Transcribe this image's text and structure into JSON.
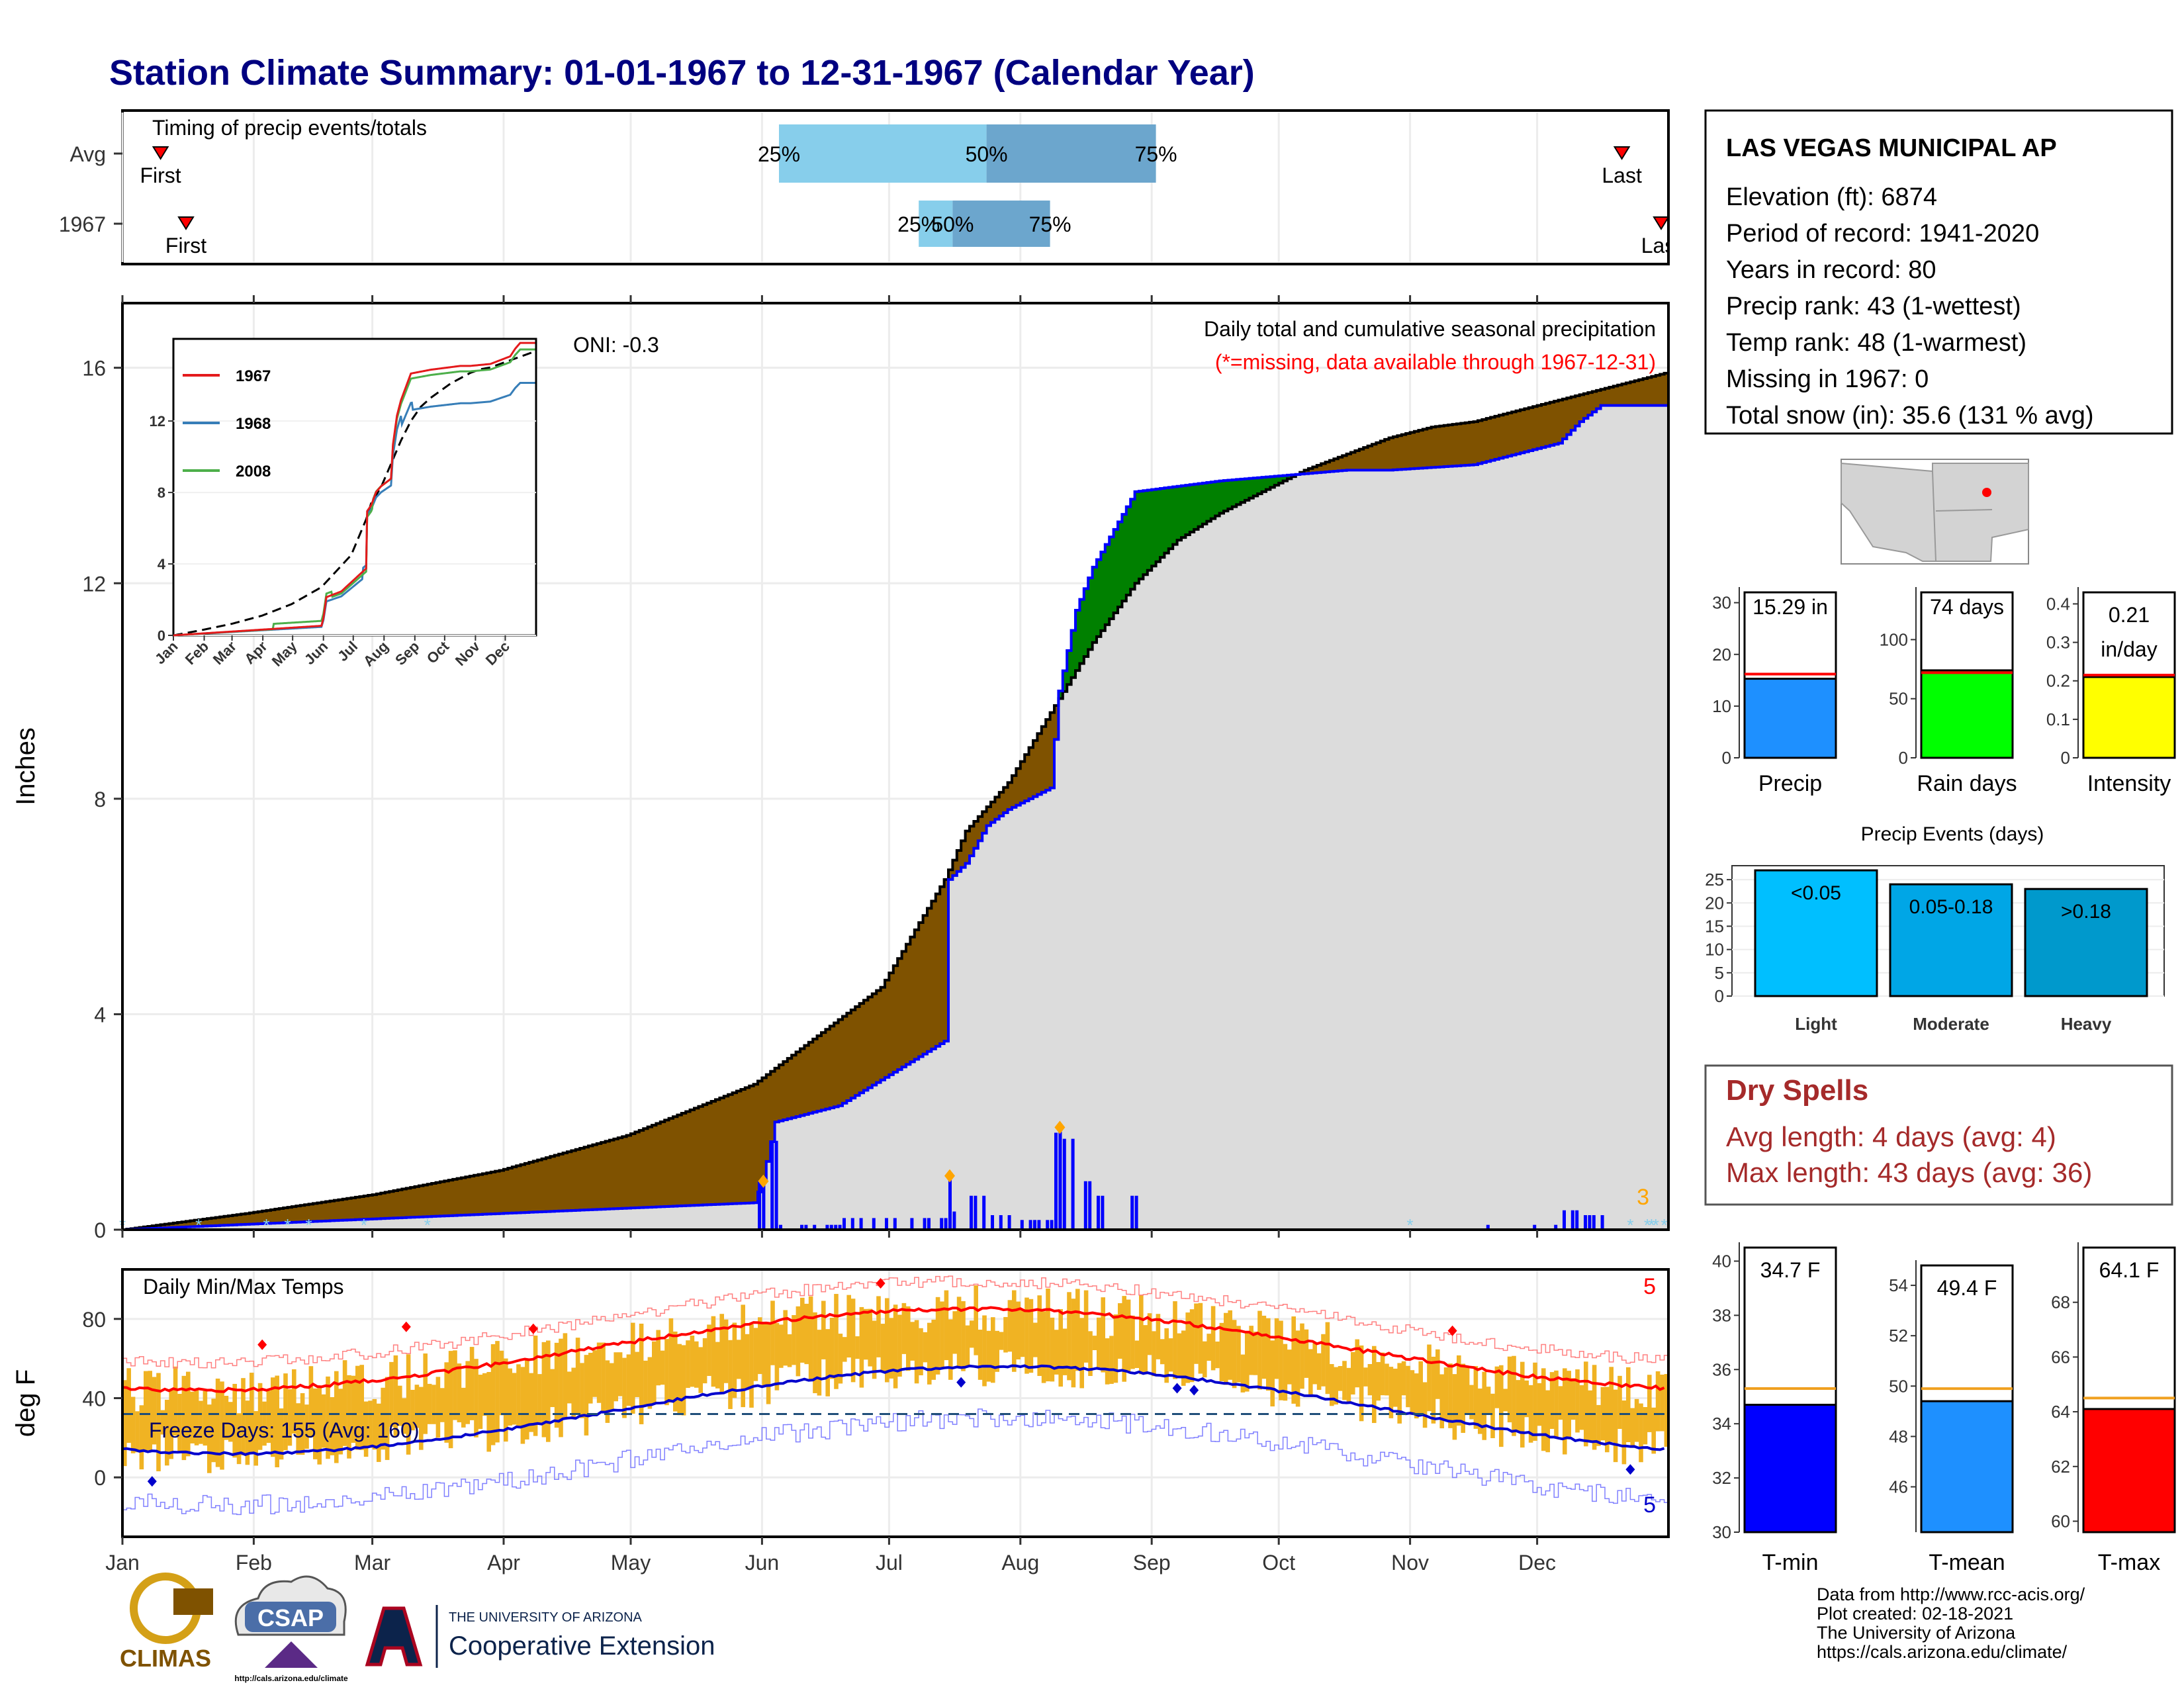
{
  "title": "Station Climate Summary: 01-01-1967 to 12-31-1967 (Calendar Year)",
  "colors": {
    "title": "#000080",
    "brown": "#7f5200",
    "green": "#008000",
    "blue": "#0000ff",
    "gray": "#dcdcdc",
    "light_blue": "#87ceeb",
    "mid_blue": "#6ca6cd",
    "orange": "#f0b323",
    "red": "#ff0000",
    "navy": "#000099",
    "dry_red": "#a52a2a"
  },
  "months": [
    "Jan",
    "Feb",
    "Mar",
    "Apr",
    "May",
    "Jun",
    "Jul",
    "Aug",
    "Sep",
    "Oct",
    "Nov",
    "Dec"
  ],
  "timing": {
    "label": "Timing of precip events/totals",
    "rows": [
      {
        "name": "Avg",
        "first_label": "First",
        "last_label": "Last",
        "first_doy": 10,
        "last_doy": 355,
        "p25_doy": 156,
        "p50_doy": 205,
        "p75_doy": 245,
        "labels": [
          "25%",
          "50%",
          "75%"
        ]
      },
      {
        "name": "1967",
        "first_label": "First",
        "last_label": "Last",
        "first_doy": 16,
        "last_doy": 365,
        "p25_doy": 189,
        "p50_doy": 197,
        "p75_doy": 220,
        "labels": [
          "25%",
          "50%",
          "75%"
        ]
      }
    ]
  },
  "main": {
    "ylabel": "Inches",
    "yticks": [
      0,
      4,
      8,
      12,
      16
    ],
    "ylim": [
      0,
      17.2
    ],
    "oni": "ONI: -0.3",
    "note1": "Daily total and cumulative seasonal precipitation",
    "note2": "(*=missing, data available through 1967-12-31)",
    "corner_count": "3"
  },
  "inset": {
    "yticks": [
      0,
      4,
      8,
      12
    ],
    "xticks": [
      "Jan",
      "Feb",
      "Mar",
      "Apr",
      "May",
      "Jun",
      "Jul",
      "Aug",
      "Sep",
      "Oct",
      "Nov",
      "Dec"
    ],
    "legend": [
      "1967",
      "1968",
      "2008"
    ],
    "legend_colors": [
      "#e41a1c",
      "#377eb8",
      "#4daf4a"
    ]
  },
  "temps": {
    "label": "Daily Min/Max Temps",
    "ylabel": "deg F",
    "yticks": [
      0,
      40,
      80
    ],
    "freeze_label": "Freeze Days: 155 (Avg: 160)",
    "freeze_line": 32,
    "count_top": "5",
    "count_bottom": "5"
  },
  "station": {
    "name": "LAS VEGAS MUNICIPAL AP",
    "lines": [
      "Elevation (ft): 6874",
      "Period of record: 1941-2020",
      "Years in record: 80",
      "Precip rank: 43 (1-wettest)",
      "Temp rank: 48 (1-warmest)",
      "Missing in 1967: 0",
      "Total snow (in): 35.6 (131 % avg)"
    ]
  },
  "summary_bars": [
    {
      "label": "Precip",
      "value_text": "15.29 in",
      "value": 15.29,
      "avg": 16.2,
      "ymax": 32,
      "yticks": [
        0,
        10,
        20,
        30
      ],
      "color": "#1e90ff"
    },
    {
      "label": "Rain days",
      "value_text": "74 days",
      "value": 74,
      "avg": 72,
      "ymax": 140,
      "yticks": [
        0,
        50,
        100
      ],
      "color": "#00ff00"
    },
    {
      "label": "Intensity",
      "value_text": "0.21",
      "value_text2": "in/day",
      "value": 0.21,
      "avg": 0.215,
      "ymax": 0.43,
      "yticks": [
        0.0,
        0.1,
        0.2,
        0.3,
        0.4
      ],
      "color": "#ffff00"
    }
  ],
  "events": {
    "title": "Precip Events (days)",
    "yticks": [
      0,
      5,
      10,
      15,
      20,
      25
    ],
    "bars": [
      {
        "label": "Light",
        "range": "<0.05",
        "value": 27,
        "color": "#00bfff"
      },
      {
        "label": "Moderate",
        "range": "0.05-0.18",
        "value": 24,
        "color": "#00a6e6"
      },
      {
        "label": "Heavy",
        "range": ">0.18",
        "value": 23,
        "color": "#0099cc"
      }
    ]
  },
  "dry_spells": {
    "title": "Dry Spells",
    "avg": "Avg length: 4 days (avg: 4)",
    "max": "Max length: 43 days (avg: 36)"
  },
  "temp_bars": [
    {
      "label": "T-min",
      "value_text": "34.7 F",
      "value": 34.7,
      "avg": 35.3,
      "ymin": 30,
      "ymax": 40.5,
      "yticks": [
        30,
        32,
        34,
        36,
        38,
        40
      ],
      "color": "#0000ff"
    },
    {
      "label": "T-mean",
      "value_text": "49.4 F",
      "value": 49.4,
      "avg": 49.9,
      "ymin": 44.2,
      "ymax": 55.5,
      "yticks": [
        46,
        48,
        50,
        52,
        54
      ],
      "color": "#1e90ff"
    },
    {
      "label": "T-max",
      "value_text": "64.1 F",
      "value": 64.1,
      "avg": 64.5,
      "ymin": 59.6,
      "ymax": 70,
      "yticks": [
        60,
        62,
        64,
        66,
        68
      ],
      "color": "#ff0000"
    }
  ],
  "credits": [
    "Data from http://www.rcc-acis.org/",
    "Plot created: 02-18-2021",
    "The University of Arizona",
    "https://cals.arizona.edu/climate/"
  ],
  "logos": {
    "climas": "CLIMAS",
    "csap": "CSAP",
    "csap_url": "http://cals.arizona.edu/climate",
    "ua_small": "THE UNIVERSITY OF ARIZONA",
    "ua_big": "Cooperative Extension"
  },
  "chart_data": {
    "type": "area",
    "title": "Station Climate Summary: 01-01-1967 to 12-31-1967 (Calendar Year)",
    "ylabel": "Inches",
    "ylim": [
      0,
      17.2
    ],
    "x_unit": "day of year",
    "series": [
      {
        "name": "1967",
        "x": [
          1,
          30,
          60,
          90,
          120,
          150,
          152,
          155,
          170,
          195,
          196,
          200,
          205,
          210,
          220,
          222,
          226,
          230,
          240,
          260,
          290,
          300,
          320,
          340,
          345,
          350,
          365
        ],
        "values": [
          0,
          0.1,
          0.2,
          0.3,
          0.4,
          0.5,
          0.9,
          2.0,
          2.3,
          3.5,
          6.5,
          6.8,
          7.5,
          7.8,
          8.2,
          10.0,
          11.5,
          12.3,
          13.7,
          13.9,
          14.1,
          14.1,
          14.2,
          14.6,
          15.0,
          15.3,
          15.3
        ]
      },
      {
        "x": [
          1,
          30,
          60,
          90,
          120,
          150,
          180,
          195,
          200,
          210,
          220,
          230,
          240,
          250,
          260,
          270,
          280,
          290,
          300,
          310,
          320,
          330,
          340,
          350,
          365
        ],
        "values": [
          0.0,
          0.3,
          0.65,
          1.1,
          1.75,
          2.7,
          4.5,
          6.5,
          7.4,
          8.3,
          9.6,
          10.9,
          12.0,
          12.8,
          13.3,
          13.7,
          14.1,
          14.4,
          14.7,
          14.9,
          15.0,
          15.2,
          15.4,
          15.6,
          15.9
        ]
      }
    ]
  }
}
